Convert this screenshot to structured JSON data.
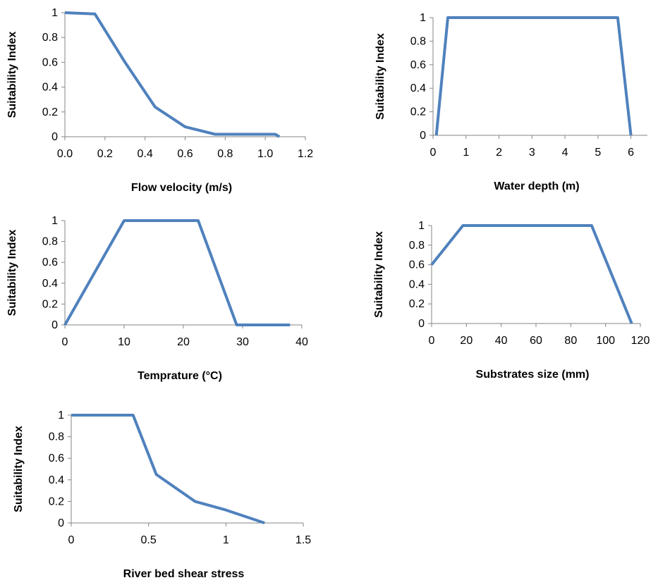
{
  "series_color": "#4F81BD",
  "chart_data": [
    {
      "type": "line",
      "xlabel": "Flow velocity (m/s)",
      "ylabel": "Suitability Index",
      "xlim": [
        0,
        1.2
      ],
      "ylim": [
        0,
        1
      ],
      "xticks": [
        "0.0",
        "0.2",
        "0.4",
        "0.6",
        "0.8",
        "1.0",
        "1.2"
      ],
      "yticks": [
        "0",
        "0.2",
        "0.4",
        "0.6",
        "0.8",
        "1"
      ],
      "grid": false,
      "series": [
        {
          "x": [
            0,
            0.15,
            0.3,
            0.45,
            0.6,
            0.75,
            0.9,
            1.05,
            1.07
          ],
          "y": [
            1,
            0.99,
            0.6,
            0.24,
            0.08,
            0.02,
            0.02,
            0.02,
            0
          ]
        }
      ]
    },
    {
      "type": "line",
      "xlabel": "Water depth (m)",
      "ylabel": "Suitability Index",
      "xlim": [
        0,
        6.5
      ],
      "ylim": [
        0,
        1
      ],
      "xticks": [
        "0",
        "1",
        "2",
        "3",
        "4",
        "5",
        "6"
      ],
      "yticks": [
        "0",
        "0.2",
        "0.4",
        "0.6",
        "0.8",
        "1"
      ],
      "grid": false,
      "series": [
        {
          "x": [
            0.1,
            0.45,
            5.6,
            6.0
          ],
          "y": [
            0,
            1,
            1,
            0
          ]
        }
      ]
    },
    {
      "type": "line",
      "xlabel": "Temprature (°C)",
      "ylabel": "Suitability Index",
      "xlim": [
        0,
        40
      ],
      "ylim": [
        0,
        1
      ],
      "xticks": [
        "0",
        "10",
        "20",
        "30",
        "40"
      ],
      "yticks": [
        "0",
        "0.2",
        "0.4",
        "0.6",
        "0.8",
        "1"
      ],
      "grid": false,
      "series": [
        {
          "x": [
            0,
            10,
            22.5,
            29,
            38
          ],
          "y": [
            0,
            1,
            1,
            0,
            0
          ]
        }
      ]
    },
    {
      "type": "line",
      "xlabel": "Substrates size (mm)",
      "ylabel": "Suitability Index",
      "xlim": [
        0,
        120
      ],
      "ylim": [
        0,
        1
      ],
      "xticks": [
        "0",
        "20",
        "40",
        "60",
        "80",
        "100",
        "120"
      ],
      "yticks": [
        "0",
        "0.2",
        "0.4",
        "0.6",
        "0.8",
        "1"
      ],
      "grid": false,
      "series": [
        {
          "x": [
            0,
            18,
            92,
            115
          ],
          "y": [
            0.6,
            1,
            1,
            0
          ]
        }
      ]
    },
    {
      "type": "line",
      "xlabel": "River bed shear stress",
      "ylabel": "Suitability Index",
      "xlim": [
        0,
        1.5
      ],
      "ylim": [
        0,
        1
      ],
      "xticks": [
        "0",
        "0.5",
        "1",
        "1.5"
      ],
      "yticks": [
        "0",
        "0.2",
        "0.4",
        "0.6",
        "0.8",
        "1"
      ],
      "grid": false,
      "series": [
        {
          "x": [
            0,
            0.4,
            0.55,
            0.8,
            1.0,
            1.25
          ],
          "y": [
            1,
            1,
            0.45,
            0.2,
            0.12,
            0
          ]
        }
      ]
    }
  ]
}
